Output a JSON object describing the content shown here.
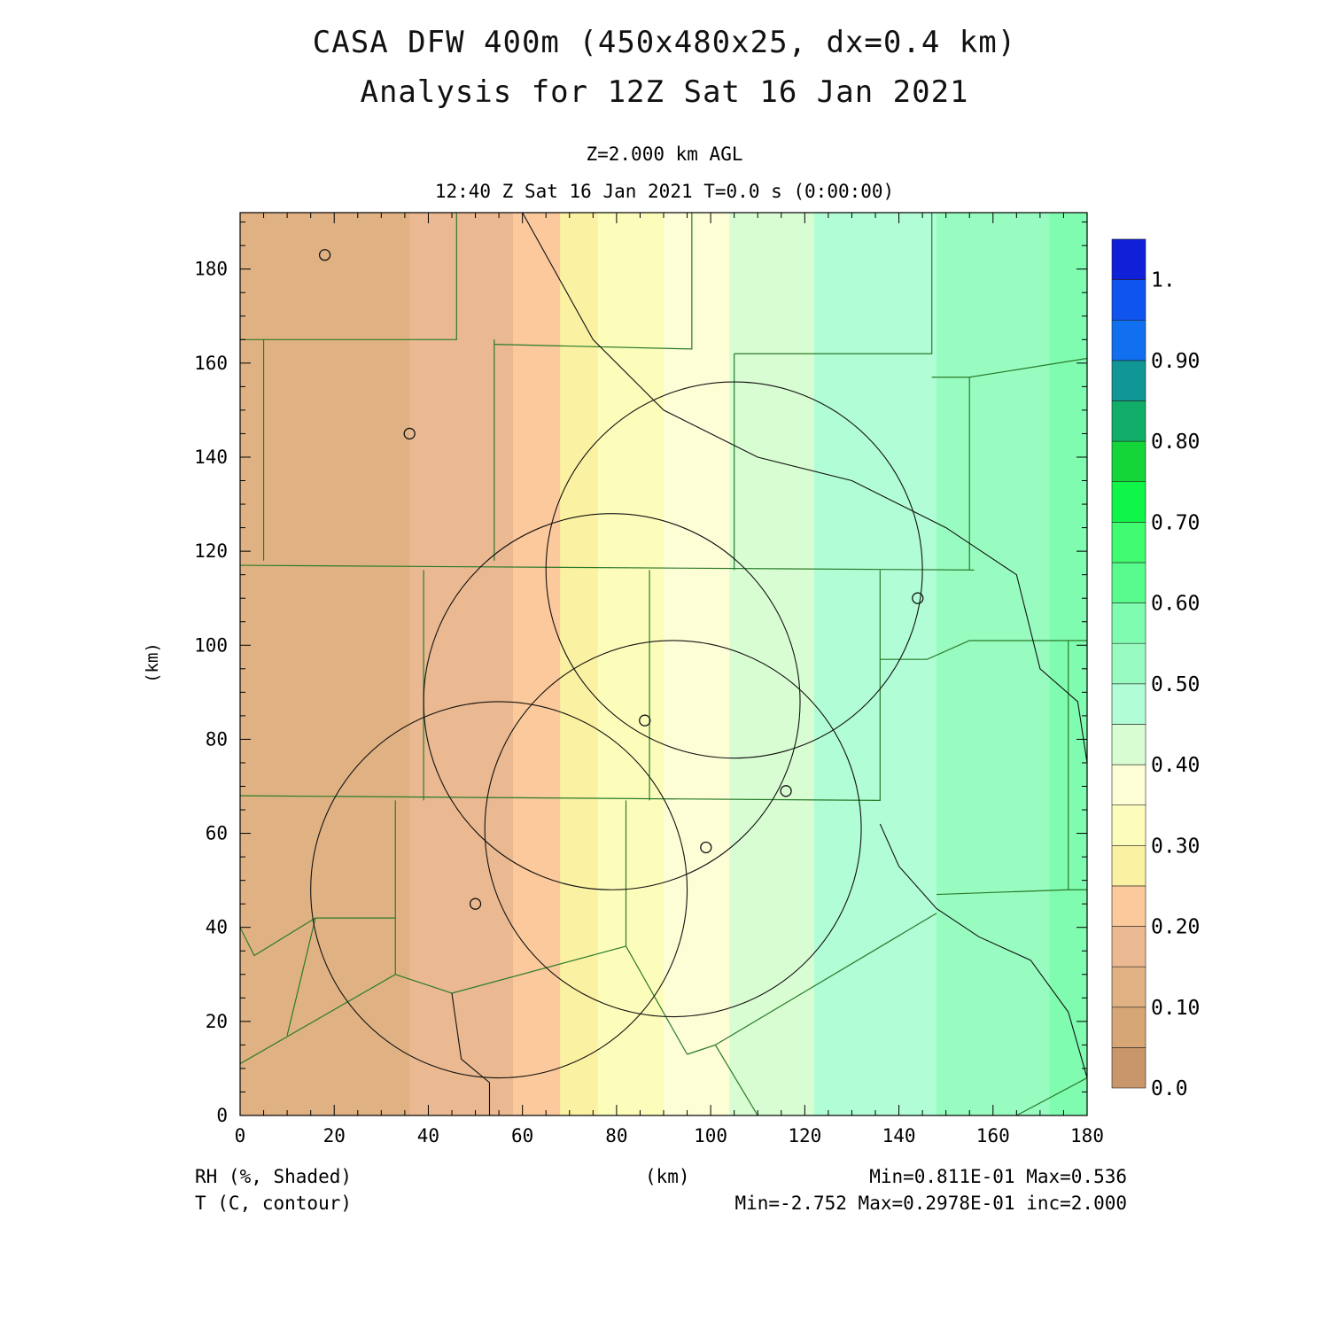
{
  "title_line1": "CASA DFW 400m (450x480x25, dx=0.4 km)",
  "title_line2": "Analysis for 12Z Sat 16 Jan 2021",
  "level_label": "Z=2.000 km AGL",
  "time_label": "12:40 Z Sat 16 Jan 2021   T=0.0 s (0:00:00)",
  "field1_label": "RH (%, Shaded)",
  "field2_label": "T (C, contour)",
  "x_unit_label": "(km)",
  "field1_stats": "Min=0.811E-01 Max=0.536",
  "field2_stats": "Min=-2.752 Max=0.2978E-01 inc=2.000",
  "chart_data": {
    "type": "heatmap",
    "xlabel": "(km)",
    "ylabel": "(km)",
    "xlim": [
      0,
      180
    ],
    "ylim": [
      0,
      192
    ],
    "x_ticks": [
      0,
      20,
      40,
      60,
      80,
      100,
      120,
      140,
      160,
      180
    ],
    "y_ticks": [
      0,
      20,
      40,
      60,
      80,
      100,
      120,
      140,
      160,
      180
    ],
    "shaded_field": "RH",
    "contour_field": "T",
    "contour_increment": 2.0,
    "colorbar": {
      "tick_labels": [
        "0.0",
        "0.10",
        "0.20",
        "0.30",
        "0.40",
        "0.50",
        "0.60",
        "0.70",
        "0.80",
        "0.90",
        "1."
      ],
      "levels": [
        0.0,
        0.05,
        0.1,
        0.15,
        0.2,
        0.25,
        0.3,
        0.35,
        0.4,
        0.45,
        0.5,
        0.55,
        0.6,
        0.65,
        0.7,
        0.75,
        0.8,
        0.85,
        0.9,
        0.95,
        1.0
      ],
      "colors": [
        "#c8966a",
        "#d6a677",
        "#e0b283",
        "#eab991",
        "#fbc99b",
        "#fbf1a2",
        "#fdfdbb",
        "#fdfdd6",
        "#d9fdd3",
        "#b0fdd6",
        "#98fcc0",
        "#80fcb0",
        "#58fc8c",
        "#40fc70",
        "#10f648",
        "#14d638",
        "#10ae68",
        "#109694",
        "#1070f0",
        "#1054f0",
        "#1020d8"
      ]
    },
    "rh_stripes": [
      {
        "x": [
          0,
          18
        ],
        "value": 0.125
      },
      {
        "x": [
          18,
          36
        ],
        "value": 0.14
      },
      {
        "x": [
          36,
          58
        ],
        "value": 0.175
      },
      {
        "x": [
          58,
          68
        ],
        "value": 0.21
      },
      {
        "x": [
          68,
          76
        ],
        "value": 0.27
      },
      {
        "x": [
          76,
          90
        ],
        "value": 0.32
      },
      {
        "x": [
          90,
          104
        ],
        "value": 0.37
      },
      {
        "x": [
          104,
          122
        ],
        "value": 0.42
      },
      {
        "x": [
          122,
          148
        ],
        "value": 0.47
      },
      {
        "x": [
          148,
          172
        ],
        "value": 0.52
      },
      {
        "x": [
          172,
          180
        ],
        "value": 0.56
      }
    ],
    "radar_sites": [
      {
        "x": 18,
        "y": 183
      },
      {
        "x": 36,
        "y": 145
      },
      {
        "x": 144,
        "y": 110
      },
      {
        "x": 86,
        "y": 84
      },
      {
        "x": 116,
        "y": 69
      },
      {
        "x": 99,
        "y": 57
      },
      {
        "x": 50,
        "y": 45
      }
    ],
    "range_rings": [
      {
        "cx": 105,
        "cy": 116,
        "r": 40
      },
      {
        "cx": 79,
        "cy": 88,
        "r": 40
      },
      {
        "cx": 92,
        "cy": 61,
        "r": 40
      },
      {
        "cx": 55,
        "cy": 48,
        "r": 40
      }
    ],
    "county_lines": [
      [
        [
          0,
          165
        ],
        [
          46,
          165
        ],
        [
          46,
          192
        ]
      ],
      [
        [
          5,
          165
        ],
        [
          5,
          118
        ]
      ],
      [
        [
          0,
          117
        ],
        [
          156,
          116
        ]
      ],
      [
        [
          54,
          165
        ],
        [
          54,
          118
        ]
      ],
      [
        [
          54,
          164
        ],
        [
          96,
          163
        ],
        [
          96,
          192
        ]
      ],
      [
        [
          105,
          162
        ],
        [
          105,
          116
        ]
      ],
      [
        [
          105,
          162
        ],
        [
          147,
          162
        ],
        [
          147,
          192
        ]
      ],
      [
        [
          147,
          157
        ],
        [
          155,
          157
        ],
        [
          155,
          116
        ]
      ],
      [
        [
          155,
          157
        ],
        [
          180,
          161
        ]
      ],
      [
        [
          39,
          116
        ],
        [
          39,
          67
        ]
      ],
      [
        [
          87,
          116
        ],
        [
          87,
          67
        ]
      ],
      [
        [
          0,
          68
        ],
        [
          136,
          67
        ],
        [
          136,
          116
        ]
      ],
      [
        [
          136,
          97
        ],
        [
          146,
          97
        ],
        [
          155,
          101
        ],
        [
          180,
          101
        ]
      ],
      [
        [
          33,
          67
        ],
        [
          33,
          42
        ],
        [
          16,
          42
        ],
        [
          10,
          17
        ]
      ],
      [
        [
          33,
          42
        ],
        [
          33,
          30
        ],
        [
          0,
          11
        ]
      ],
      [
        [
          0,
          40
        ],
        [
          3,
          34
        ],
        [
          16,
          42
        ]
      ],
      [
        [
          82,
          67
        ],
        [
          82,
          36
        ],
        [
          95,
          13
        ]
      ],
      [
        [
          82,
          36
        ],
        [
          45,
          26
        ],
        [
          33,
          30
        ]
      ],
      [
        [
          95,
          13
        ],
        [
          101,
          15
        ],
        [
          110,
          0
        ]
      ],
      [
        [
          101,
          15
        ],
        [
          148,
          43
        ]
      ],
      [
        [
          148,
          47
        ],
        [
          176,
          48
        ],
        [
          176,
          101
        ]
      ],
      [
        [
          176,
          48
        ],
        [
          180,
          48
        ]
      ],
      [
        [
          165,
          0
        ],
        [
          180,
          8
        ]
      ]
    ],
    "river_lines": [
      [
        [
          60,
          192
        ],
        [
          75,
          165
        ],
        [
          90,
          150
        ],
        [
          110,
          140
        ],
        [
          130,
          135
        ],
        [
          150,
          125
        ],
        [
          165,
          115
        ],
        [
          170,
          95
        ],
        [
          178,
          88
        ],
        [
          180,
          75
        ]
      ],
      [
        [
          136,
          62
        ],
        [
          140,
          53
        ],
        [
          148,
          44
        ],
        [
          157,
          38
        ],
        [
          168,
          33
        ],
        [
          176,
          22
        ],
        [
          180,
          8
        ]
      ],
      [
        [
          45,
          26
        ],
        [
          47,
          12
        ],
        [
          53,
          7
        ],
        [
          53,
          0
        ]
      ]
    ]
  }
}
